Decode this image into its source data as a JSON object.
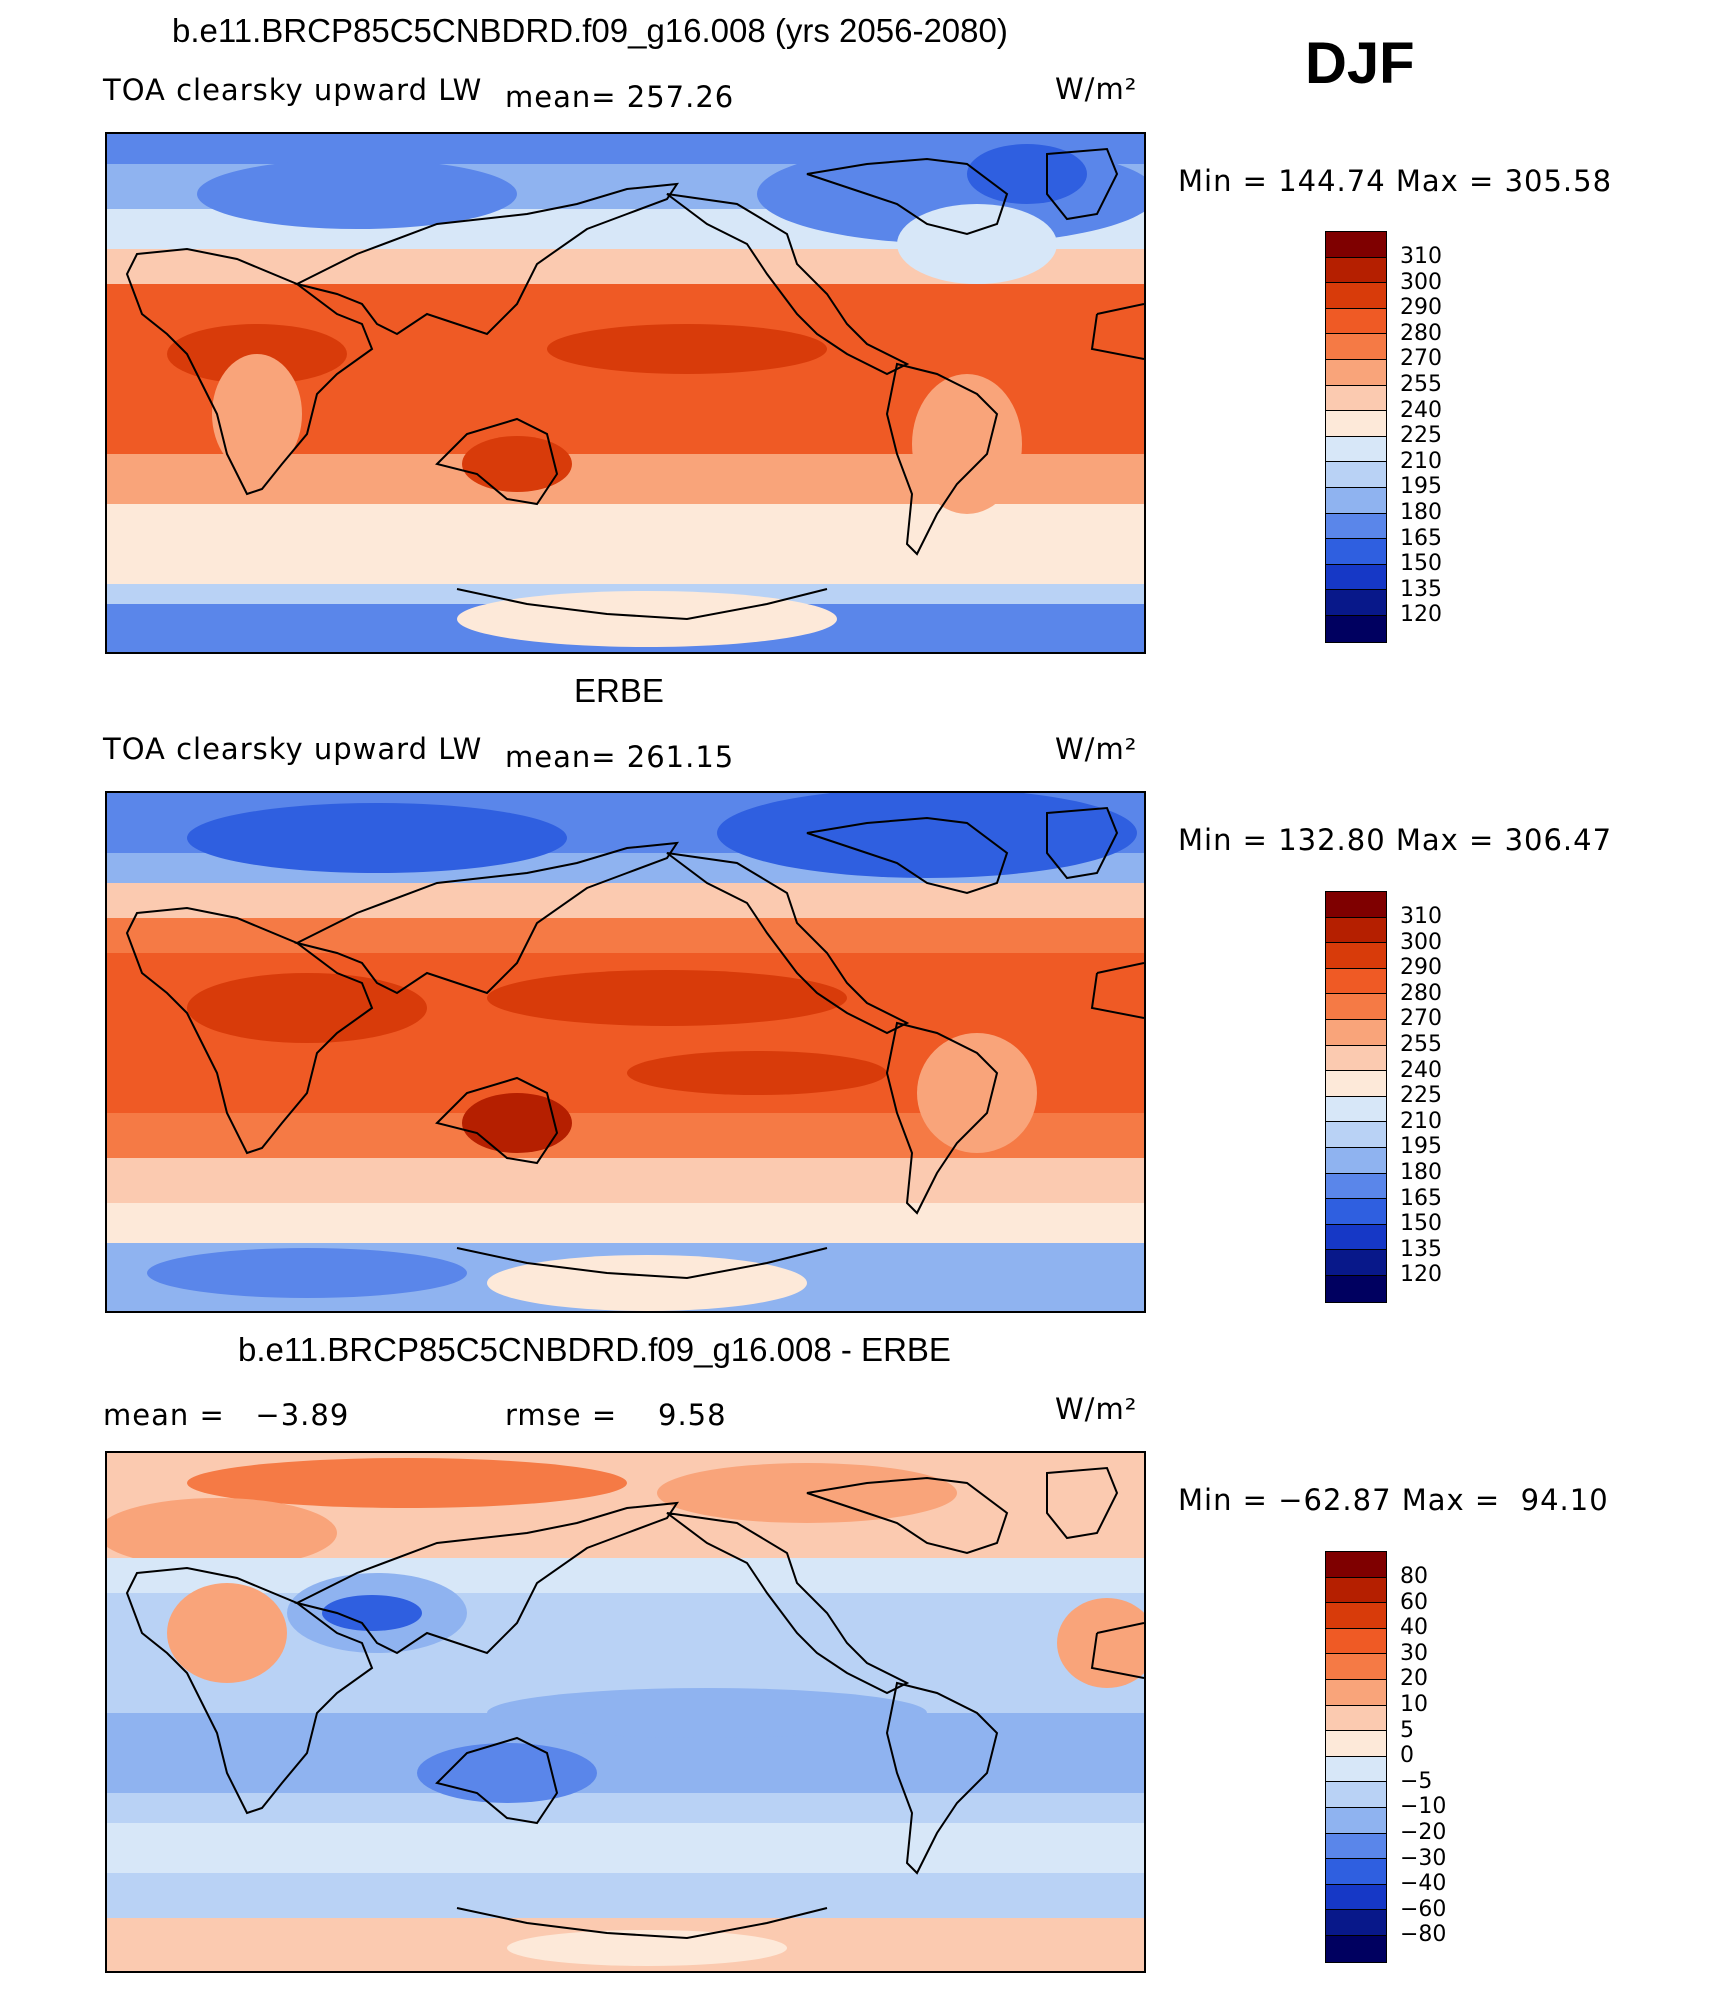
{
  "season": "DJF",
  "units_label": "W/m²",
  "panels": [
    {
      "title": "b.e11.BRCP85C5CNBDRD.f09_g16.008 (yrs 2056-2080)",
      "variable": "TOA clearsky upward LW",
      "mean_text": "mean= 257.26",
      "minmax": "Min = 144.74 Max = 305.58",
      "levels": [
        "310",
        "300",
        "290",
        "280",
        "270",
        "255",
        "240",
        "225",
        "210",
        "195",
        "180",
        "165",
        "150",
        "135",
        "120"
      ]
    },
    {
      "title": "ERBE",
      "variable": "TOA clearsky upward LW",
      "mean_text": "mean= 261.15",
      "minmax": "Min = 132.80 Max = 306.47",
      "levels": [
        "310",
        "300",
        "290",
        "280",
        "270",
        "255",
        "240",
        "225",
        "210",
        "195",
        "180",
        "165",
        "150",
        "135",
        "120"
      ]
    },
    {
      "title": "b.e11.BRCP85C5CNBDRD.f09_g16.008 - ERBE",
      "mean_text": "mean =   −3.89",
      "rmse_text": "rmse =    9.58",
      "minmax": "Min = −62.87 Max =  94.10",
      "levels": [
        "80",
        "60",
        "40",
        "30",
        "20",
        "10",
        "5",
        "0",
        "−5",
        "−10",
        "−20",
        "−30",
        "−40",
        "−60",
        "−80"
      ]
    }
  ],
  "colors": {
    "abs_scale": [
      "#7f0000",
      "#b51f00",
      "#d83b0a",
      "#ef5a25",
      "#f57a45",
      "#f9a47a",
      "#fbcab0",
      "#fde9d9",
      "#d7e7f8",
      "#b9d2f5",
      "#8fb3f0",
      "#5a86ea",
      "#2f5fe0",
      "#1638c6",
      "#08188a",
      "#000060"
    ],
    "diff_scale": [
      "#7f0000",
      "#b51f00",
      "#d83b0a",
      "#ef5a25",
      "#f57a45",
      "#f9a47a",
      "#fbcab0",
      "#fde9d9",
      "#d7e7f8",
      "#b9d2f5",
      "#8fb3f0",
      "#5a86ea",
      "#2f5fe0",
      "#1638c6",
      "#08188a",
      "#000060"
    ]
  }
}
